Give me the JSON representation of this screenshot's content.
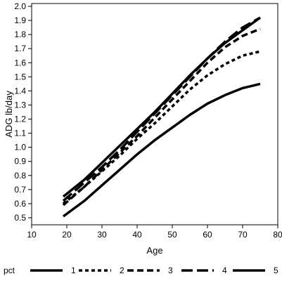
{
  "chart_data": {
    "type": "line",
    "xlabel": "Age",
    "ylabel": "ADG lb/day",
    "xlim": [
      10,
      80
    ],
    "ylim": [
      0.45,
      2.02
    ],
    "x_ticks": [
      10,
      20,
      30,
      40,
      50,
      60,
      70,
      80
    ],
    "y_ticks": [
      0.5,
      0.6,
      0.7,
      0.8,
      0.9,
      1.0,
      1.1,
      1.2,
      1.3,
      1.4,
      1.5,
      1.6,
      1.7,
      1.8,
      1.9,
      2.0
    ],
    "y_tick_labels": [
      "0.5",
      "0.6",
      "0.7",
      "0.8",
      "0.9",
      "1.0",
      "1.1",
      "1.2",
      "1.3",
      "1.4",
      "1.5",
      "1.6",
      "1.7",
      "1.8",
      "1.9",
      "2.0"
    ],
    "grid": false,
    "legend": {
      "title": "pct",
      "placement": "bottom"
    },
    "series": [
      {
        "name": "1",
        "style": "solid",
        "x": [
          19,
          25,
          30,
          35,
          40,
          45,
          50,
          55,
          60,
          65,
          70,
          75
        ],
        "y": [
          0.51,
          0.62,
          0.73,
          0.84,
          0.95,
          1.05,
          1.14,
          1.23,
          1.31,
          1.37,
          1.42,
          1.45
        ]
      },
      {
        "name": "2",
        "style": "short-dash",
        "x": [
          19,
          25,
          30,
          35,
          40,
          45,
          50,
          55,
          60,
          65,
          70,
          75
        ],
        "y": [
          0.6,
          0.72,
          0.83,
          0.94,
          1.06,
          1.17,
          1.29,
          1.41,
          1.51,
          1.59,
          1.65,
          1.68
        ]
      },
      {
        "name": "3",
        "style": "dash",
        "x": [
          19,
          25,
          30,
          35,
          40,
          45,
          50,
          55,
          60,
          65,
          70,
          75
        ],
        "y": [
          0.59,
          0.72,
          0.84,
          0.96,
          1.08,
          1.21,
          1.34,
          1.47,
          1.6,
          1.71,
          1.79,
          1.84
        ]
      },
      {
        "name": "4",
        "style": "long-dash",
        "x": [
          19,
          25,
          30,
          35,
          40,
          45,
          50,
          55,
          60,
          65,
          70,
          75
        ],
        "y": [
          0.62,
          0.75,
          0.86,
          0.98,
          1.11,
          1.24,
          1.37,
          1.5,
          1.63,
          1.75,
          1.85,
          1.92
        ]
      },
      {
        "name": "5",
        "style": "solid",
        "x": [
          19,
          25,
          30,
          35,
          40,
          45,
          50,
          55,
          60,
          65,
          70,
          75
        ],
        "y": [
          0.65,
          0.77,
          0.89,
          1.01,
          1.13,
          1.25,
          1.38,
          1.51,
          1.63,
          1.74,
          1.83,
          1.92
        ]
      }
    ]
  }
}
